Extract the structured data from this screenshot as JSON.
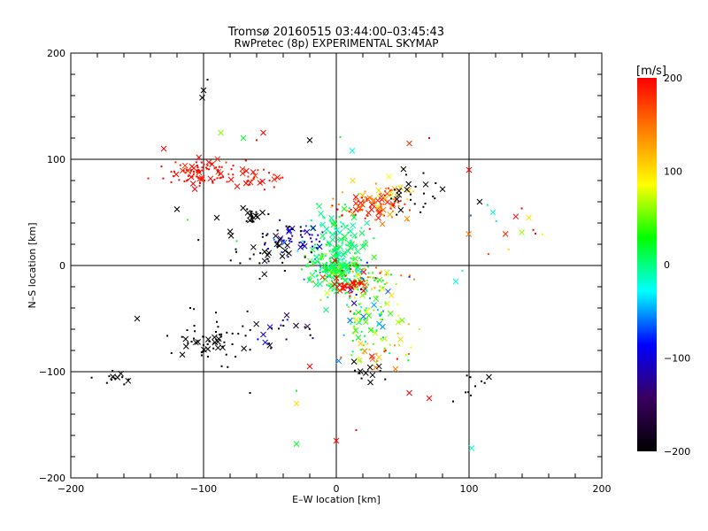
{
  "chart_data": {
    "type": "scatter",
    "title": "Tromsø 20160515 03:44:00–03:45:43",
    "subtitle": "RwPretec (8p) EXPERIMENTAL SKYMAP",
    "xlabel": "E–W location [km]",
    "ylabel": "N–S location [km]",
    "xlim": [
      -200,
      200
    ],
    "ylim": [
      -200,
      200
    ],
    "xticks": [
      -200,
      -100,
      0,
      100,
      200
    ],
    "yticks": [
      -200,
      -100,
      0,
      100,
      200
    ],
    "grid": true,
    "colorbar": {
      "label": "[m/s]",
      "range": [
        -200,
        200
      ],
      "ticks": [
        -200,
        -100,
        0,
        100,
        200
      ],
      "colormap": [
        "#000000",
        "#3a0060",
        "#0000ff",
        "#00ffff",
        "#00ff00",
        "#ffff00",
        "#ff8000",
        "#ff0000"
      ]
    },
    "markers": [
      "x (large)",
      "· (small)"
    ],
    "clusters": [
      {
        "x": -100,
        "y": 88,
        "sx": 14,
        "sy": 6,
        "n": 90,
        "v": 195,
        "dv": 8
      },
      {
        "x": -62,
        "y": 82,
        "sx": 10,
        "sy": 6,
        "n": 30,
        "v": 190,
        "dv": 10
      },
      {
        "x": 28,
        "y": 55,
        "sx": 14,
        "sy": 8,
        "n": 90,
        "v": 170,
        "dv": 30
      },
      {
        "x": 40,
        "y": 68,
        "sx": 10,
        "sy": 8,
        "n": 25,
        "v": 110,
        "dv": 25
      },
      {
        "x": 60,
        "y": 70,
        "sx": 12,
        "sy": 12,
        "n": 25,
        "v": -200,
        "dv": 0
      },
      {
        "x": 0,
        "y": 15,
        "sx": 12,
        "sy": 20,
        "n": 170,
        "v": 5,
        "dv": 12
      },
      {
        "x": -3,
        "y": -3,
        "sx": 9,
        "sy": 7,
        "n": 130,
        "v": 15,
        "dv": 25
      },
      {
        "x": 22,
        "y": -15,
        "sx": 15,
        "sy": 10,
        "n": 90,
        "v": 90,
        "dv": 90
      },
      {
        "x": 10,
        "y": -18,
        "sx": 5,
        "sy": 3,
        "n": 45,
        "v": 190,
        "dv": 10
      },
      {
        "x": 28,
        "y": -50,
        "sx": 12,
        "sy": 16,
        "n": 90,
        "v": 35,
        "dv": 45
      },
      {
        "x": -30,
        "y": 25,
        "sx": 10,
        "sy": 8,
        "n": 50,
        "v": -110,
        "dv": 25
      },
      {
        "x": -50,
        "y": 15,
        "sx": 15,
        "sy": 12,
        "n": 40,
        "v": -200,
        "dv": 0
      },
      {
        "x": -62,
        "y": 47,
        "sx": 4,
        "sy": 4,
        "n": 25,
        "v": -200,
        "dv": 0
      },
      {
        "x": -95,
        "y": -70,
        "sx": 14,
        "sy": 10,
        "n": 60,
        "v": -200,
        "dv": 0
      },
      {
        "x": -165,
        "y": -105,
        "sx": 7,
        "sy": 5,
        "n": 14,
        "v": -200,
        "dv": 0
      },
      {
        "x": 30,
        "y": -85,
        "sx": 18,
        "sy": 8,
        "n": 30,
        "v": 120,
        "dv": 70
      },
      {
        "x": -40,
        "y": -60,
        "sx": 15,
        "sy": 12,
        "n": 20,
        "v": -150,
        "dv": 50
      },
      {
        "x": 20,
        "y": -100,
        "sx": 10,
        "sy": 5,
        "n": 12,
        "v": -200,
        "dv": 0
      },
      {
        "x": 125,
        "y": 35,
        "sx": 15,
        "sy": 10,
        "n": 12,
        "v": 110,
        "dv": 90
      },
      {
        "x": 103,
        "y": -115,
        "sx": 6,
        "sy": 6,
        "n": 8,
        "v": -200,
        "dv": 0
      }
    ],
    "points": [
      {
        "x": -100,
        "y": 165,
        "v": -200
      },
      {
        "x": -101,
        "y": 158,
        "v": -200
      },
      {
        "x": -97,
        "y": 175,
        "v": -200
      },
      {
        "x": -87,
        "y": 125,
        "v": 60
      },
      {
        "x": -70,
        "y": 120,
        "v": 20
      },
      {
        "x": -60,
        "y": 118,
        "v": 200
      },
      {
        "x": -55,
        "y": 125,
        "v": 200
      },
      {
        "x": -20,
        "y": 118,
        "v": -200
      },
      {
        "x": 3,
        "y": 121,
        "v": 20
      },
      {
        "x": 12,
        "y": 108,
        "v": -20
      },
      {
        "x": 55,
        "y": 115,
        "v": 180
      },
      {
        "x": 70,
        "y": 120,
        "v": 200
      },
      {
        "x": -130,
        "y": 110,
        "v": 200
      },
      {
        "x": -120,
        "y": 53,
        "v": -200
      },
      {
        "x": -112,
        "y": 43,
        "v": 40
      },
      {
        "x": -90,
        "y": 45,
        "v": -200
      },
      {
        "x": -80,
        "y": 32,
        "v": -200
      },
      {
        "x": -75,
        "y": 23,
        "v": 20
      },
      {
        "x": 118,
        "y": 50,
        "v": -20
      },
      {
        "x": 145,
        "y": 45,
        "v": 100
      },
      {
        "x": 150,
        "y": 30,
        "v": 200
      },
      {
        "x": 100,
        "y": 90,
        "v": 200
      },
      {
        "x": 108,
        "y": 60,
        "v": -200
      },
      {
        "x": 95,
        "y": -5,
        "v": -20
      },
      {
        "x": 90,
        "y": -15,
        "v": -20
      },
      {
        "x": -150,
        "y": -50,
        "v": -200
      },
      {
        "x": -110,
        "y": -40,
        "v": -200
      },
      {
        "x": -55,
        "y": -65,
        "v": -100
      },
      {
        "x": -50,
        "y": -58,
        "v": -100
      },
      {
        "x": -30,
        "y": -118,
        "v": 20
      },
      {
        "x": -30,
        "y": -168,
        "v": 20
      },
      {
        "x": 0,
        "y": -165,
        "v": 200
      },
      {
        "x": 15,
        "y": -155,
        "v": 200
      },
      {
        "x": 55,
        "y": -120,
        "v": 200
      },
      {
        "x": 70,
        "y": -125,
        "v": 200
      },
      {
        "x": 88,
        "y": -128,
        "v": -200
      },
      {
        "x": 102,
        "y": -172,
        "v": -20
      },
      {
        "x": 115,
        "y": -105,
        "v": -200
      },
      {
        "x": -65,
        "y": -120,
        "v": -200
      },
      {
        "x": -20,
        "y": -95,
        "v": 200
      },
      {
        "x": -30,
        "y": -130,
        "v": 100
      }
    ]
  }
}
